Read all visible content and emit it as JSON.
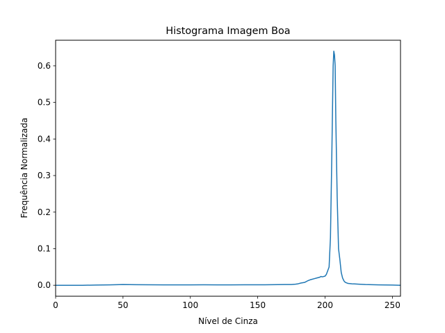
{
  "chart_data": {
    "type": "line",
    "title": "Histograma Imagem Boa",
    "xlabel": "Nível de Cinza",
    "ylabel": "Frequência Normalizada",
    "xlim": [
      0,
      256
    ],
    "ylim": [
      -0.03,
      0.67
    ],
    "xticks": [
      0,
      50,
      100,
      150,
      200,
      250
    ],
    "yticks": [
      0.0,
      0.1,
      0.2,
      0.3,
      0.4,
      0.5,
      0.6
    ],
    "ytick_labels": [
      "0.0",
      "0.1",
      "0.2",
      "0.3",
      "0.4",
      "0.5",
      "0.6"
    ],
    "grid": false,
    "line_color": "#1f77b4",
    "series": [
      {
        "x": [
          0,
          10,
          20,
          30,
          40,
          45,
          50,
          55,
          60,
          70,
          80,
          90,
          100,
          110,
          120,
          130,
          140,
          150,
          160,
          170,
          175,
          178,
          180,
          182,
          185,
          187,
          189,
          190,
          192,
          194,
          196,
          197,
          198,
          200,
          201,
          202,
          203,
          204,
          205,
          206,
          206.5,
          207,
          207.5,
          208,
          209,
          210,
          211,
          212,
          213,
          214,
          215,
          217,
          220,
          225,
          230,
          240,
          250,
          256
        ],
        "values": [
          0.0,
          0.0,
          0.0,
          0.0005,
          0.001,
          0.0015,
          0.002,
          0.0018,
          0.0015,
          0.0012,
          0.001,
          0.001,
          0.001,
          0.0012,
          0.001,
          0.001,
          0.0012,
          0.0012,
          0.0015,
          0.002,
          0.002,
          0.003,
          0.004,
          0.006,
          0.008,
          0.012,
          0.015,
          0.016,
          0.018,
          0.02,
          0.022,
          0.024,
          0.023,
          0.025,
          0.03,
          0.04,
          0.05,
          0.13,
          0.35,
          0.6,
          0.64,
          0.63,
          0.6,
          0.45,
          0.24,
          0.1,
          0.07,
          0.035,
          0.02,
          0.012,
          0.008,
          0.005,
          0.004,
          0.003,
          0.002,
          0.001,
          0.0005,
          0.0
        ]
      }
    ]
  }
}
